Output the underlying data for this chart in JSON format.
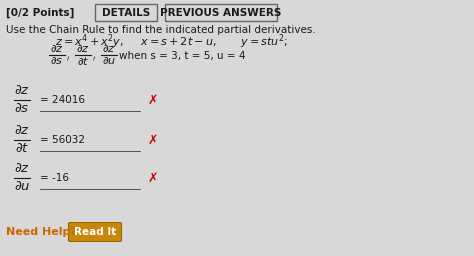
{
  "bg_color": "#d8d8d8",
  "header_text": "[0/2 Points]",
  "btn1_text": "DETAILS",
  "btn2_text": "PREVIOUS ANSWERS",
  "instruction": "Use the Chain Rule to find the indicated partial derivatives.",
  "eq_line3": "when s = 3, t = 5, u = 4",
  "deriv_values": [
    "= 24016",
    "= 56032",
    "= -16"
  ],
  "need_help": "Need Help?",
  "read_it": "Read It",
  "x_color": "#cc0000",
  "need_help_color": "#cc6600",
  "read_it_bg": "#c8870a",
  "text_color": "#1a1a1a",
  "btn_border_color": "#666666",
  "fs_base": 7.5,
  "fs_math": 8.0,
  "fs_math_large": 9.5
}
